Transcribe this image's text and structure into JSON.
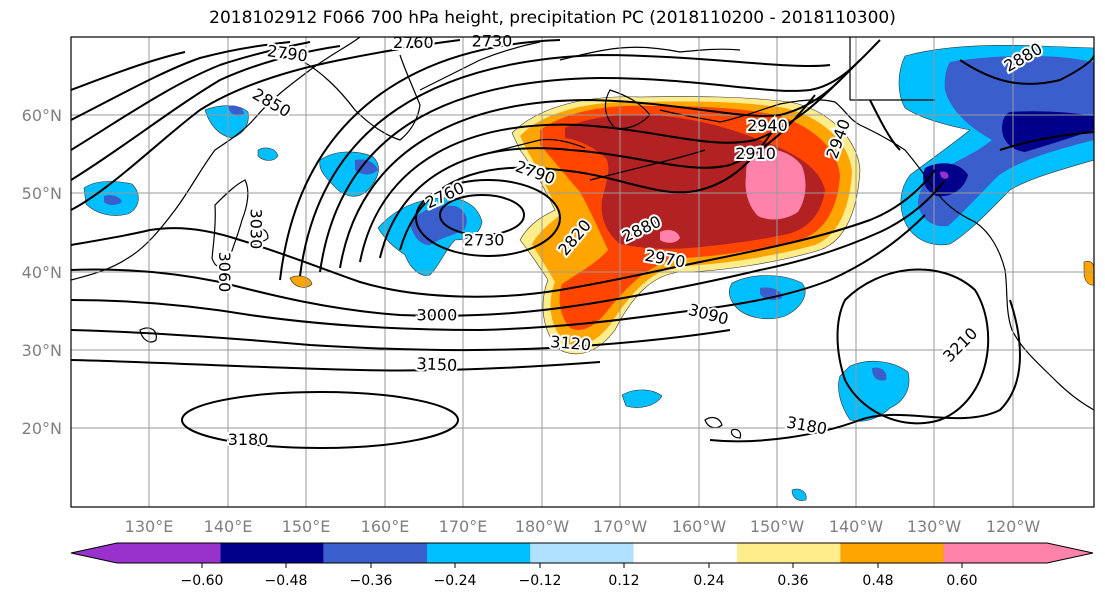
{
  "title": "2018102912 F066 700 hPa height, precipitation PC (2018110200 - 2018110300)",
  "lon_labels": [
    "130°E",
    "140°E",
    "150°E",
    "160°E",
    "170°E",
    "180°W",
    "170°W",
    "160°W",
    "150°W",
    "140°W",
    "130°W",
    "120°W"
  ],
  "lat_labels": [
    "60°N",
    "50°N",
    "40°N",
    "30°N",
    "20°N"
  ],
  "colorbar": {
    "colors": [
      "#9932cc",
      "#00008b",
      "#3a5fcd",
      "#00bfff",
      "#b0e2ff",
      "#ffffff",
      "#ffec8b",
      "#ffa500",
      "#ff4500",
      "#b22222",
      "#ff82ab"
    ],
    "tick_labels": [
      "−0.60",
      "−0.48",
      "−0.36",
      "−0.24",
      "−0.12",
      "0.12",
      "0.24",
      "0.36",
      "0.48",
      "0.60"
    ]
  },
  "contour_labels": [
    {
      "text": "2760",
      "lon": 163.5,
      "lat": 69.3,
      "rot": 0
    },
    {
      "text": "2730",
      "lon": 173.5,
      "lat": 69.5,
      "rot": 0
    },
    {
      "text": "2790",
      "lon": 147.5,
      "lat": 67.9,
      "rot": 8
    },
    {
      "text": "2850",
      "lon": 145.5,
      "lat": 61.6,
      "rot": 30
    },
    {
      "text": "3030",
      "lon": 143.5,
      "lat": 45.5,
      "rot": 90
    },
    {
      "text": "3060",
      "lon": 139.5,
      "lat": 40.0,
      "rot": 90
    },
    {
      "text": "2760",
      "lon": 167.5,
      "lat": 49.8,
      "rot": -25
    },
    {
      "text": "2730",
      "lon": 172.5,
      "lat": 44.1,
      "rot": 0
    },
    {
      "text": "2790",
      "lon": 179.0,
      "lat": 52.7,
      "rot": 20
    },
    {
      "text": "2820",
      "lon": 184.0,
      "lat": 44.4,
      "rot": -50
    },
    {
      "text": "2880",
      "lon": 192.5,
      "lat": 45.5,
      "rot": -25
    },
    {
      "text": "2940",
      "lon": 208.5,
      "lat": 58.7,
      "rot": 0
    },
    {
      "text": "2910",
      "lon": 207.0,
      "lat": 55.1,
      "rot": 0
    },
    {
      "text": "2940",
      "lon": 217.5,
      "lat": 57.0,
      "rot": -70
    },
    {
      "text": "2970",
      "lon": 195.5,
      "lat": 41.7,
      "rot": 10
    },
    {
      "text": "3000",
      "lon": 166.5,
      "lat": 34.5,
      "rot": 0
    },
    {
      "text": "3120",
      "lon": 183.5,
      "lat": 30.9,
      "rot": 5
    },
    {
      "text": "3090",
      "lon": 201.0,
      "lat": 34.6,
      "rot": 15
    },
    {
      "text": "3150",
      "lon": 166.5,
      "lat": 28.2,
      "rot": 3
    },
    {
      "text": "3180",
      "lon": 142.5,
      "lat": 18.6,
      "rot": 0
    },
    {
      "text": "3180",
      "lon": 213.5,
      "lat": 20.4,
      "rot": 10
    },
    {
      "text": "3210",
      "lon": 233.0,
      "lat": 30.7,
      "rot": -45
    },
    {
      "text": "2880",
      "lon": 241.0,
      "lat": 67.4,
      "rot": -30
    }
  ]
}
